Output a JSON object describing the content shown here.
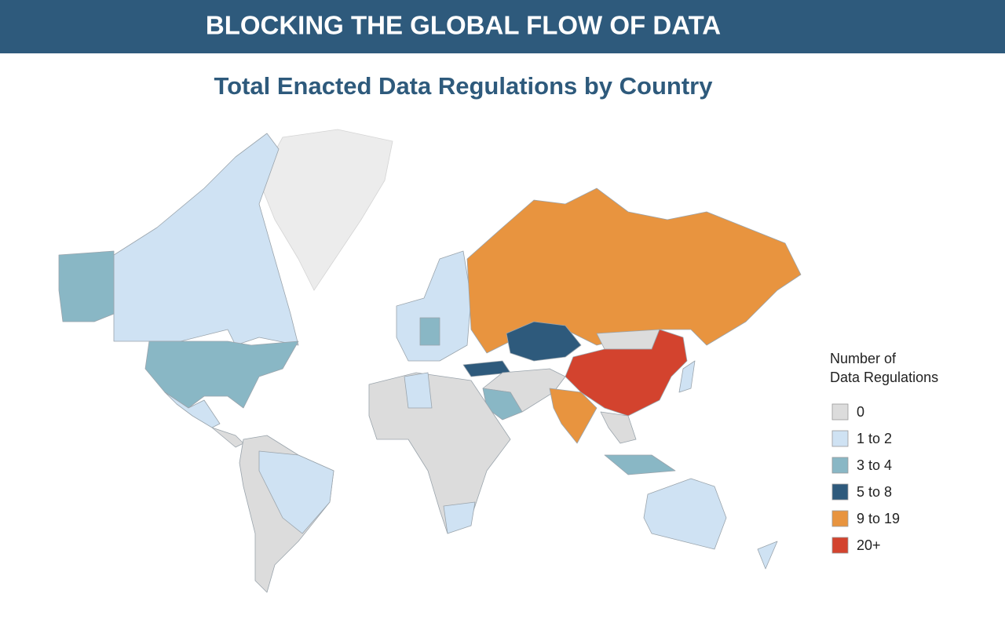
{
  "header": {
    "title": "BLOCKING THE GLOBAL FLOW OF DATA"
  },
  "map": {
    "title": "Total Enacted Data Regulations by Country",
    "legend": {
      "title": [
        "Number of",
        "Data Regulations"
      ],
      "items": [
        {
          "label": "0",
          "color": "#dcdcdc"
        },
        {
          "label": "1 to 2",
          "color": "#cfe2f3"
        },
        {
          "label": "3 to 4",
          "color": "#89b7c5"
        },
        {
          "label": "5 to 8",
          "color": "#2e5a7c"
        },
        {
          "label": "9 to 19",
          "color": "#e8943f"
        },
        {
          "label": "20+",
          "color": "#d3432e"
        }
      ]
    }
  }
}
